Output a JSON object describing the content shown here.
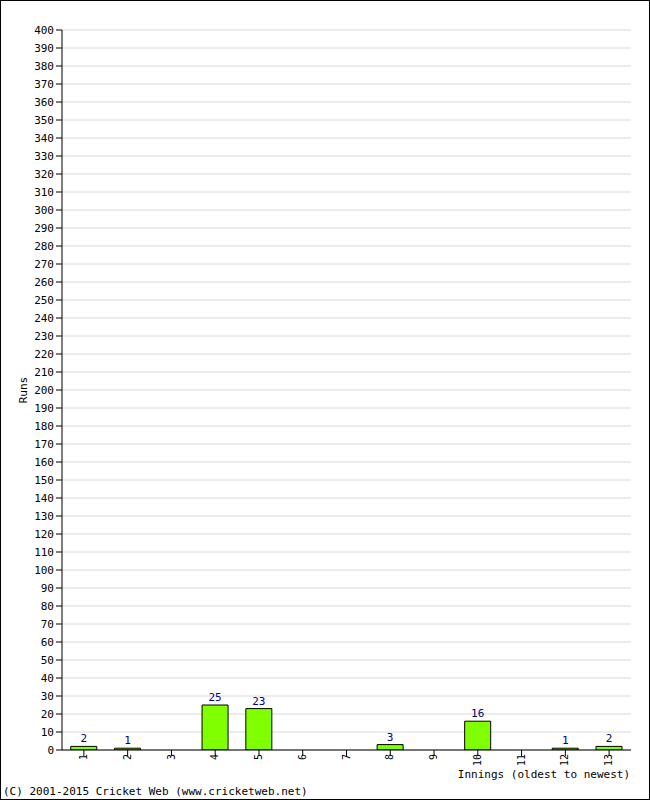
{
  "chart_data": {
    "type": "bar",
    "categories": [
      "1",
      "2",
      "3",
      "4",
      "5",
      "6",
      "7",
      "8",
      "9",
      "10",
      "11",
      "12",
      "13"
    ],
    "values": [
      2,
      1,
      0,
      25,
      23,
      0,
      0,
      3,
      0,
      16,
      0,
      1,
      2
    ],
    "color": "#80ff00",
    "ylabel": "Runs",
    "xlabel": "Innings (oldest to newest)",
    "annotation": "(C) 2001-2015 Cricket Web (www.cricketweb.net)",
    "ylim": [
      0,
      400
    ],
    "yticks": [
      0,
      10,
      20,
      30,
      40,
      50,
      60,
      70,
      80,
      90,
      100,
      110,
      120,
      130,
      140,
      150,
      160,
      170,
      180,
      190,
      200,
      210,
      220,
      230,
      240,
      250,
      260,
      270,
      280,
      290,
      300,
      310,
      320,
      330,
      340,
      350,
      360,
      370,
      380,
      390,
      400
    ],
    "grid": true,
    "data_labels": true
  }
}
